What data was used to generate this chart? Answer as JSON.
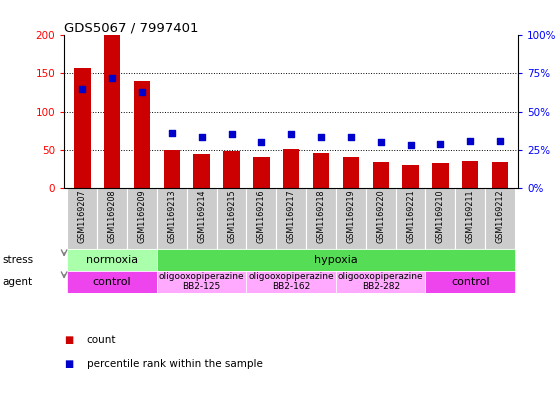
{
  "title": "GDS5067 / 7997401",
  "samples": [
    "GSM1169207",
    "GSM1169208",
    "GSM1169209",
    "GSM1169213",
    "GSM1169214",
    "GSM1169215",
    "GSM1169216",
    "GSM1169217",
    "GSM1169218",
    "GSM1169219",
    "GSM1169220",
    "GSM1169221",
    "GSM1169210",
    "GSM1169211",
    "GSM1169212"
  ],
  "counts": [
    157,
    200,
    140,
    49,
    44,
    48,
    41,
    51,
    46,
    40,
    34,
    30,
    33,
    35,
    34
  ],
  "percentiles": [
    65,
    72,
    63,
    36,
    33,
    35,
    30,
    35,
    33,
    33,
    30,
    28,
    29,
    31,
    31
  ],
  "ylim_left": [
    0,
    200
  ],
  "ylim_right": [
    0,
    100
  ],
  "yticks_left": [
    0,
    50,
    100,
    150,
    200
  ],
  "yticks_right": [
    0,
    25,
    50,
    75,
    100
  ],
  "yticklabels_right": [
    "0%",
    "25%",
    "50%",
    "75%",
    "100%"
  ],
  "bar_color": "#cc0000",
  "dot_color": "#0000cc",
  "bg_color": "#ffffff",
  "tick_bg_color": "#cccccc",
  "stress_blocks": [
    {
      "start": 0,
      "end": 3,
      "color": "#aaffaa",
      "label": "normoxia"
    },
    {
      "start": 3,
      "end": 15,
      "color": "#55dd55",
      "label": "hypoxia"
    }
  ],
  "agent_blocks": [
    {
      "start": 0,
      "end": 3,
      "color": "#ee44ee",
      "label": "control",
      "small": false
    },
    {
      "start": 3,
      "end": 6,
      "color": "#ffaaff",
      "label": "oligooxopiperazine\nBB2-125",
      "small": true
    },
    {
      "start": 6,
      "end": 9,
      "color": "#ffaaff",
      "label": "oligooxopiperazine\nBB2-162",
      "small": true
    },
    {
      "start": 9,
      "end": 12,
      "color": "#ffaaff",
      "label": "oligooxopiperazine\nBB2-282",
      "small": true
    },
    {
      "start": 12,
      "end": 15,
      "color": "#ee44ee",
      "label": "control",
      "small": false
    }
  ]
}
